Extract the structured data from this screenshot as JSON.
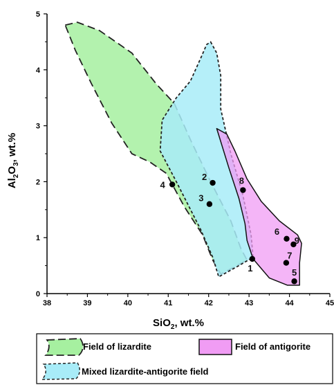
{
  "chart_data": {
    "type": "scatter",
    "xlabel": {
      "main": "SiO",
      "sub": "2",
      "rest": ", wt.%"
    },
    "ylabel": {
      "pre": "Al",
      "sub1": "2",
      "mid": "O",
      "sub2": "3",
      "rest": ", wt.%"
    },
    "xlim": [
      38,
      45
    ],
    "ylim": [
      0,
      5
    ],
    "xticks": [
      "38",
      "39",
      "40",
      "41",
      "42",
      "43",
      "44",
      "45"
    ],
    "yticks": [
      "0",
      "1",
      "2",
      "3",
      "4",
      "5"
    ],
    "grid": false,
    "points": [
      {
        "label": "1",
        "x": 43.08,
        "y": 0.62
      },
      {
        "label": "2",
        "x": 42.1,
        "y": 1.98
      },
      {
        "label": "3",
        "x": 42.02,
        "y": 1.6
      },
      {
        "label": "4",
        "x": 41.1,
        "y": 1.95
      },
      {
        "label": "5",
        "x": 44.12,
        "y": 0.22
      },
      {
        "label": "6",
        "x": 43.93,
        "y": 0.98
      },
      {
        "label": "7",
        "x": 43.92,
        "y": 0.55
      },
      {
        "label": "8",
        "x": 42.85,
        "y": 1.85
      },
      {
        "label": "9",
        "x": 44.1,
        "y": 0.88
      }
    ],
    "fields": [
      {
        "name": "Field of lizardite",
        "fill": "#a6f0a0",
        "stroke": "#222222",
        "style": "long-dash",
        "polygon": [
          [
            38.45,
            4.8
          ],
          [
            38.75,
            4.85
          ],
          [
            39.3,
            4.7
          ],
          [
            40.1,
            4.3
          ],
          [
            40.7,
            3.75
          ],
          [
            41.15,
            3.4
          ],
          [
            41.55,
            2.75
          ],
          [
            42.05,
            2.0
          ],
          [
            42.55,
            1.3
          ],
          [
            42.8,
            0.8
          ],
          [
            42.95,
            0.6
          ],
          [
            42.65,
            0.48
          ],
          [
            42.3,
            0.35
          ],
          [
            42.1,
            0.6
          ],
          [
            41.85,
            1.05
          ],
          [
            41.4,
            1.55
          ],
          [
            40.95,
            2.15
          ],
          [
            40.55,
            2.35
          ],
          [
            40.1,
            2.5
          ],
          [
            39.6,
            3.05
          ],
          [
            39.1,
            3.75
          ],
          [
            38.7,
            4.35
          ]
        ]
      },
      {
        "name": "Mixed lizardite-antigorite field",
        "fill": "#a8ecf8",
        "stroke": "#222222",
        "style": "short-dash",
        "polygon": [
          [
            42.05,
            4.5
          ],
          [
            42.2,
            4.3
          ],
          [
            42.3,
            3.9
          ],
          [
            42.3,
            3.3
          ],
          [
            42.55,
            2.5
          ],
          [
            42.85,
            1.75
          ],
          [
            43.05,
            1.05
          ],
          [
            43.1,
            0.65
          ],
          [
            42.75,
            0.5
          ],
          [
            42.25,
            0.3
          ],
          [
            42.1,
            0.65
          ],
          [
            41.8,
            1.15
          ],
          [
            41.2,
            2.0
          ],
          [
            40.8,
            2.55
          ],
          [
            40.85,
            3.1
          ],
          [
            41.2,
            3.5
          ],
          [
            41.55,
            3.8
          ],
          [
            41.8,
            4.2
          ],
          [
            41.95,
            4.45
          ]
        ]
      },
      {
        "name": "Field of antigorite",
        "fill": "#f09cf4",
        "stroke": "#111111",
        "style": "solid",
        "polygon": [
          [
            42.2,
            2.95
          ],
          [
            42.45,
            2.85
          ],
          [
            42.65,
            2.55
          ],
          [
            42.95,
            2.05
          ],
          [
            43.3,
            1.65
          ],
          [
            43.75,
            1.3
          ],
          [
            44.2,
            1.05
          ],
          [
            44.3,
            0.9
          ],
          [
            44.25,
            0.55
          ],
          [
            44.25,
            0.15
          ],
          [
            43.95,
            0.15
          ],
          [
            43.5,
            0.28
          ],
          [
            43.1,
            0.62
          ],
          [
            42.95,
            0.95
          ],
          [
            42.9,
            1.25
          ],
          [
            42.75,
            1.7
          ],
          [
            42.5,
            2.25
          ]
        ]
      }
    ],
    "legend_position": "bottom",
    "legend": [
      {
        "label": "Field of lizardite",
        "fill": "#a6f0a0",
        "style": "long-dash"
      },
      {
        "label": "Field of antigorite",
        "fill": "#f09cf4",
        "style": "solid"
      },
      {
        "label": "Mixed lizardite-antigorite field",
        "fill": "#a8ecf8",
        "style": "short-dash"
      }
    ]
  }
}
